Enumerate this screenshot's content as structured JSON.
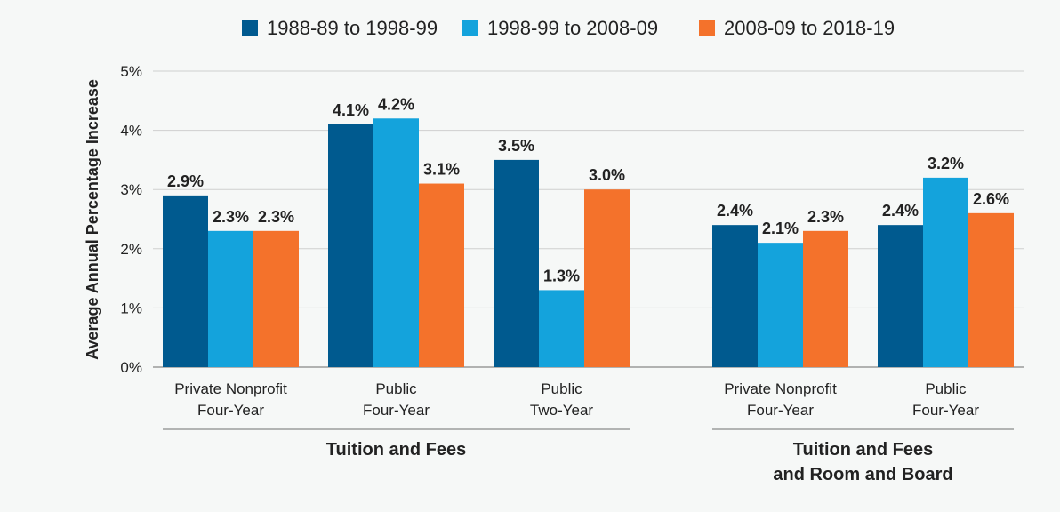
{
  "chart_data": {
    "type": "bar",
    "ylabel": "Average Annual Percentage Increase",
    "ylim": [
      0,
      5
    ],
    "yticks": [
      "0%",
      "1%",
      "2%",
      "3%",
      "4%",
      "5%"
    ],
    "grid": true,
    "legend_placement": "top",
    "categories": [
      {
        "line1": "Private Nonprofit",
        "line2": "Four-Year"
      },
      {
        "line1": "Public",
        "line2": "Four-Year"
      },
      {
        "line1": "Public",
        "line2": "Two-Year"
      },
      {
        "line1": "Private Nonprofit",
        "line2": "Four-Year"
      },
      {
        "line1": "Public",
        "line2": "Four-Year"
      }
    ],
    "groups": [
      {
        "label_lines": [
          "Tuition and Fees"
        ],
        "categories": [
          0,
          1,
          2
        ]
      },
      {
        "label_lines": [
          "Tuition and Fees",
          "and Room and Board"
        ],
        "categories": [
          3,
          4
        ]
      }
    ],
    "series": [
      {
        "name": "1988-89 to 1998-99",
        "color": "#005a8f",
        "values": [
          2.9,
          4.1,
          3.5,
          2.4,
          2.4
        ],
        "labels": [
          "2.9%",
          "4.1%",
          "3.5%",
          "2.4%",
          "2.4%"
        ]
      },
      {
        "name": "1998-99 to 2008-09",
        "color": "#14a3dc",
        "values": [
          2.3,
          4.2,
          1.3,
          2.1,
          3.2
        ],
        "labels": [
          "2.3%",
          "4.2%",
          "1.3%",
          "2.1%",
          "3.2%"
        ]
      },
      {
        "name": "2008-09 to 2018-19",
        "color": "#f4722b",
        "values": [
          2.3,
          3.1,
          3.0,
          2.3,
          2.6
        ],
        "labels": [
          "2.3%",
          "3.1%",
          "3.0%",
          "2.3%",
          "2.6%"
        ]
      }
    ]
  }
}
